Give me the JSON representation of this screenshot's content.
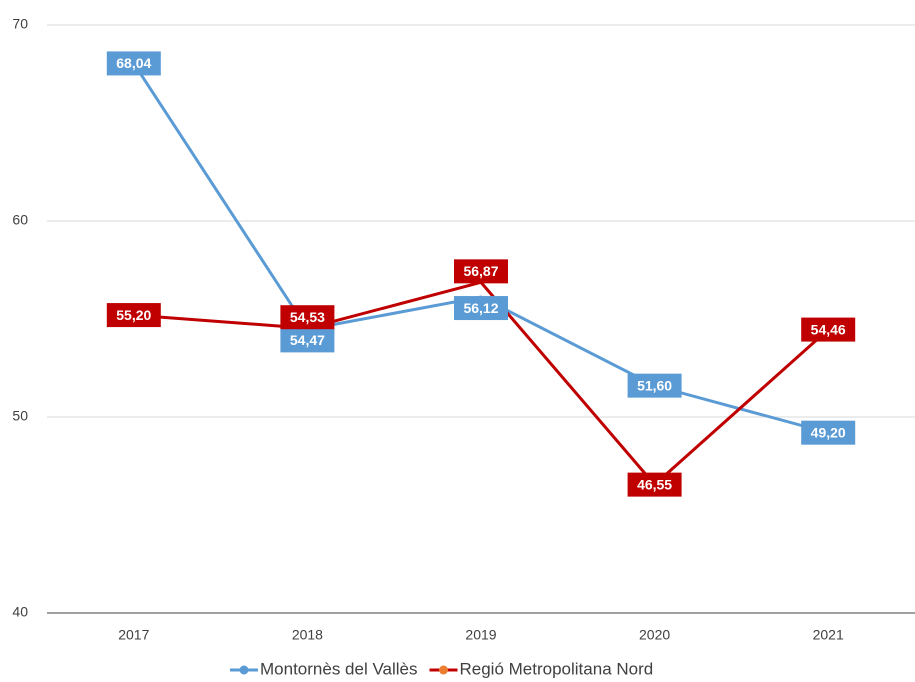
{
  "chart_data": {
    "type": "line",
    "categories": [
      "2017",
      "2018",
      "2019",
      "2020",
      "2021"
    ],
    "series": [
      {
        "name": "Montornès del Vallès",
        "color": "#5b9bd5",
        "marker_color": "#5b9bd5",
        "values": [
          68.04,
          54.47,
          56.12,
          51.6,
          49.2
        ],
        "value_labels": [
          "68,04",
          "54,47",
          "56,12",
          "51,60",
          "49,20"
        ]
      },
      {
        "name": "Regió Metropolitana Nord",
        "color": "#c00000",
        "marker_color": "#ed7d31",
        "values": [
          55.2,
          54.53,
          56.87,
          46.55,
          54.46
        ],
        "value_labels": [
          "55,20",
          "54,53",
          "56,87",
          "46,55",
          "54,46"
        ]
      }
    ],
    "ylim": [
      40,
      70
    ],
    "yticks": [
      40,
      50,
      60,
      70
    ],
    "grid": true,
    "legend": "bottom"
  }
}
